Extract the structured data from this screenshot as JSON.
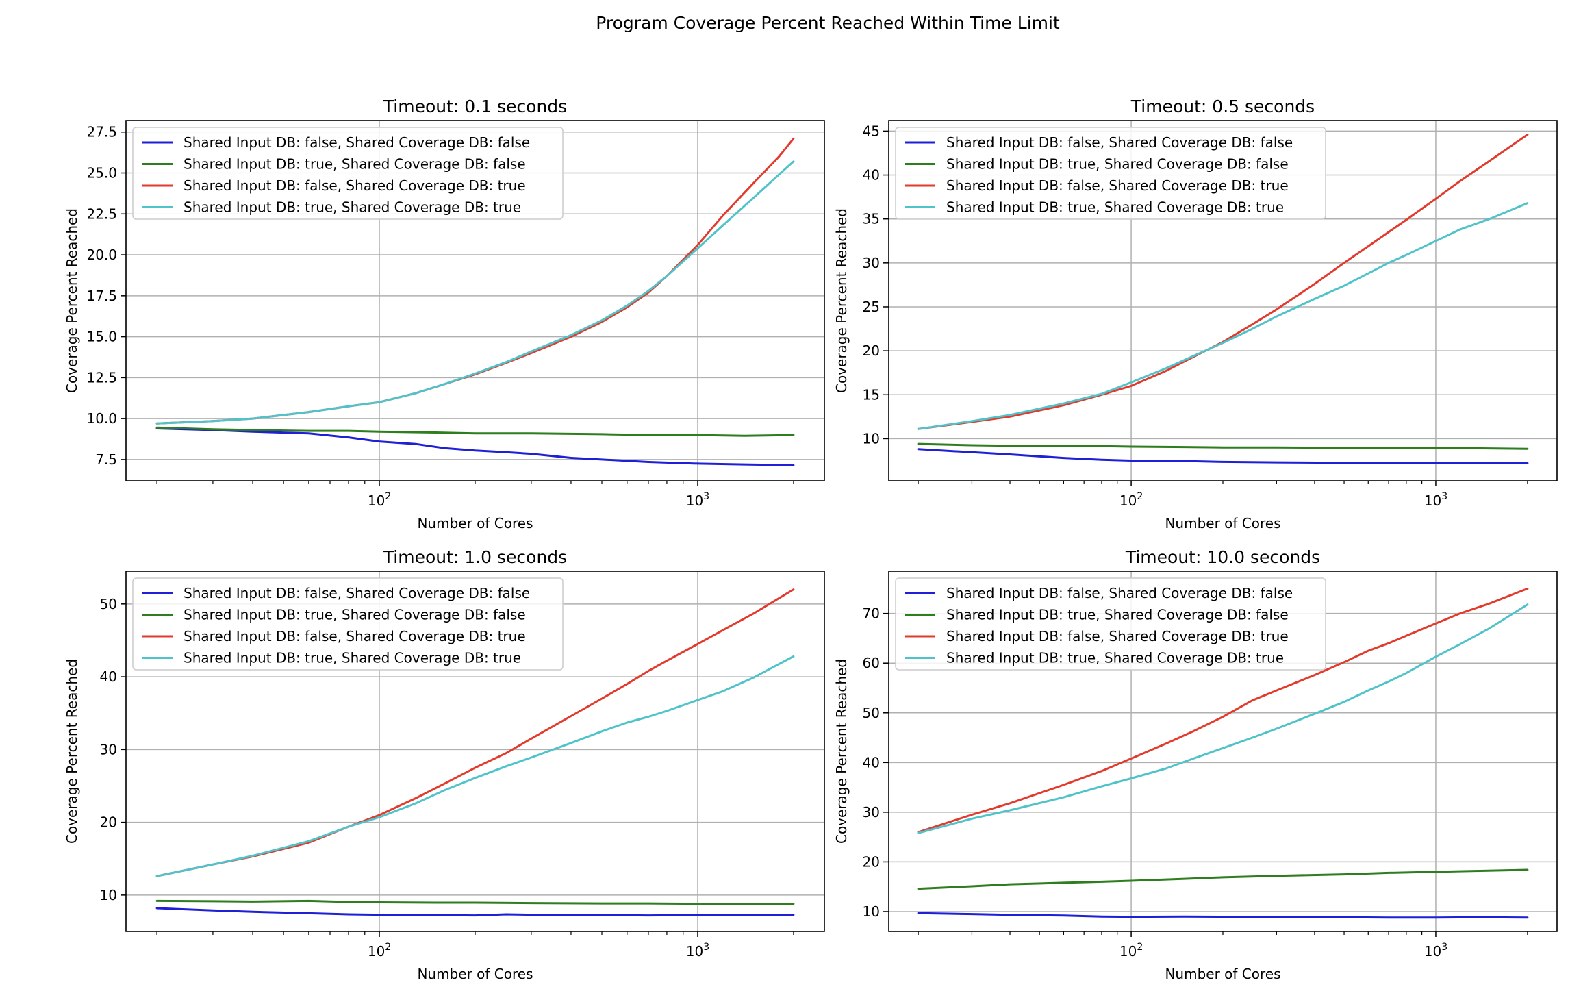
{
  "figure": {
    "suptitle": "Program Coverage Percent Reached Within Time Limit",
    "colors": {
      "blue": "#1f1fd6",
      "green": "#2e7d1f",
      "red": "#e23b2e",
      "cyan": "#4fc3c9"
    }
  },
  "chart_data": [
    {
      "type": "line",
      "title": "Timeout: 0.1 seconds",
      "xlabel": "Number of Cores",
      "ylabel": "Coverage Percent Reached",
      "xscale": "log",
      "xlim": [
        16,
        2500
      ],
      "ylim": [
        6.2,
        28.2
      ],
      "yticks": [
        7.5,
        10.0,
        12.5,
        15.0,
        17.5,
        20.0,
        22.5,
        25.0,
        27.5
      ],
      "ytick_labels": [
        "7.5",
        "10.0",
        "12.5",
        "15.0",
        "17.5",
        "20.0",
        "22.5",
        "25.0",
        "27.5"
      ],
      "xticks": [
        100,
        1000
      ],
      "xtick_labels": [
        "2",
        "3"
      ],
      "grid": true,
      "legend": "upper-left",
      "series": [
        {
          "name": "Shared Input DB:  false, Shared Coverage DB:  false",
          "color": "#1f1fd6",
          "x": [
            20,
            30,
            40,
            60,
            80,
            100,
            130,
            160,
            200,
            250,
            300,
            400,
            500,
            700,
            1000,
            1400,
            2000
          ],
          "y": [
            9.4,
            9.3,
            9.2,
            9.1,
            8.85,
            8.6,
            8.45,
            8.2,
            8.05,
            7.95,
            7.85,
            7.6,
            7.5,
            7.35,
            7.25,
            7.2,
            7.15
          ]
        },
        {
          "name": "Shared Input DB:  true, Shared Coverage DB:  false",
          "color": "#2e7d1f",
          "x": [
            20,
            30,
            40,
            60,
            80,
            100,
            150,
            200,
            300,
            500,
            700,
            1000,
            1400,
            2000
          ],
          "y": [
            9.45,
            9.35,
            9.3,
            9.25,
            9.25,
            9.2,
            9.15,
            9.1,
            9.1,
            9.05,
            9.0,
            9.0,
            8.95,
            9.0
          ]
        },
        {
          "name": "Shared Input DB:  false, Shared Coverage DB:  true",
          "color": "#e23b2e",
          "x": [
            20,
            30,
            40,
            60,
            80,
            100,
            130,
            160,
            200,
            250,
            300,
            400,
            500,
            600,
            700,
            800,
            1000,
            1200,
            1500,
            1800,
            2000
          ],
          "y": [
            9.7,
            9.85,
            10.0,
            10.4,
            10.75,
            11.0,
            11.55,
            12.1,
            12.7,
            13.4,
            14.0,
            15.0,
            15.9,
            16.8,
            17.7,
            18.7,
            20.6,
            22.4,
            24.4,
            26.0,
            27.1
          ]
        },
        {
          "name": "Shared Input DB:  true, Shared Coverage DB:  true",
          "color": "#4fc3c9",
          "x": [
            20,
            30,
            40,
            60,
            80,
            100,
            130,
            160,
            200,
            250,
            300,
            400,
            500,
            600,
            700,
            800,
            1000,
            1200,
            1500,
            1800,
            2000
          ],
          "y": [
            9.7,
            9.85,
            10.0,
            10.4,
            10.75,
            11.0,
            11.55,
            12.1,
            12.75,
            13.45,
            14.1,
            15.1,
            16.0,
            16.9,
            17.8,
            18.7,
            20.4,
            21.8,
            23.5,
            24.9,
            25.7
          ]
        }
      ]
    },
    {
      "type": "line",
      "title": "Timeout: 0.5 seconds",
      "xlabel": "Number of Cores",
      "ylabel": "Coverage Percent Reached",
      "xscale": "log",
      "xlim": [
        16,
        2500
      ],
      "ylim": [
        5.2,
        46.2
      ],
      "yticks": [
        10,
        15,
        20,
        25,
        30,
        35,
        40,
        45
      ],
      "ytick_labels": [
        "10",
        "15",
        "20",
        "25",
        "30",
        "35",
        "40",
        "45"
      ],
      "xticks": [
        100,
        1000
      ],
      "xtick_labels": [
        "2",
        "3"
      ],
      "grid": true,
      "legend": "upper-left",
      "series": [
        {
          "name": "Shared Input DB:  false, Shared Coverage DB:  false",
          "color": "#1f1fd6",
          "x": [
            20,
            30,
            40,
            60,
            80,
            100,
            150,
            200,
            300,
            500,
            700,
            1000,
            1400,
            2000
          ],
          "y": [
            8.8,
            8.45,
            8.2,
            7.8,
            7.6,
            7.5,
            7.45,
            7.35,
            7.3,
            7.25,
            7.2,
            7.2,
            7.25,
            7.2
          ]
        },
        {
          "name": "Shared Input DB:  true, Shared Coverage DB:  false",
          "color": "#2e7d1f",
          "x": [
            20,
            30,
            40,
            60,
            80,
            100,
            150,
            200,
            300,
            500,
            700,
            1000,
            1400,
            2000
          ],
          "y": [
            9.4,
            9.25,
            9.2,
            9.2,
            9.15,
            9.1,
            9.05,
            9.0,
            9.0,
            8.95,
            8.95,
            8.95,
            8.9,
            8.85
          ]
        },
        {
          "name": "Shared Input DB:  false, Shared Coverage DB:  true",
          "color": "#e23b2e",
          "x": [
            20,
            30,
            40,
            60,
            80,
            100,
            130,
            160,
            200,
            250,
            300,
            400,
            500,
            600,
            700,
            800,
            1000,
            1200,
            1500,
            2000
          ],
          "y": [
            11.1,
            11.9,
            12.5,
            13.8,
            15.0,
            16.0,
            17.7,
            19.3,
            21.0,
            23.0,
            24.7,
            27.6,
            30.0,
            31.9,
            33.5,
            34.9,
            37.3,
            39.3,
            41.6,
            44.6
          ]
        },
        {
          "name": "Shared Input DB:  true, Shared Coverage DB:  true",
          "color": "#4fc3c9",
          "x": [
            20,
            30,
            40,
            60,
            80,
            100,
            130,
            160,
            200,
            250,
            300,
            400,
            500,
            600,
            700,
            800,
            1000,
            1200,
            1500,
            2000
          ],
          "y": [
            11.1,
            12.0,
            12.7,
            14.0,
            15.1,
            16.4,
            18.0,
            19.4,
            20.9,
            22.5,
            23.9,
            25.9,
            27.4,
            28.8,
            30.0,
            30.9,
            32.5,
            33.8,
            35.0,
            36.8
          ]
        }
      ]
    },
    {
      "type": "line",
      "title": "Timeout: 1.0 seconds",
      "xlabel": "Number of Cores",
      "ylabel": "Coverage Percent Reached",
      "xscale": "log",
      "xlim": [
        16,
        2500
      ],
      "ylim": [
        5.0,
        54.5
      ],
      "yticks": [
        10,
        20,
        30,
        40,
        50
      ],
      "ytick_labels": [
        "10",
        "20",
        "30",
        "40",
        "50"
      ],
      "xticks": [
        100,
        1000
      ],
      "xtick_labels": [
        "2",
        "3"
      ],
      "grid": true,
      "legend": "upper-left",
      "series": [
        {
          "name": "Shared Input DB:  false, Shared Coverage DB:  false",
          "color": "#1f1fd6",
          "x": [
            20,
            30,
            40,
            60,
            80,
            100,
            150,
            200,
            250,
            300,
            500,
            700,
            1000,
            1400,
            2000
          ],
          "y": [
            8.2,
            7.9,
            7.7,
            7.5,
            7.35,
            7.3,
            7.25,
            7.2,
            7.35,
            7.3,
            7.25,
            7.2,
            7.25,
            7.25,
            7.3
          ]
        },
        {
          "name": "Shared Input DB:  true, Shared Coverage DB:  false",
          "color": "#2e7d1f",
          "x": [
            20,
            30,
            40,
            60,
            80,
            100,
            150,
            200,
            300,
            500,
            700,
            1000,
            1400,
            2000
          ],
          "y": [
            9.2,
            9.15,
            9.1,
            9.2,
            9.05,
            9.0,
            8.95,
            8.95,
            8.9,
            8.85,
            8.85,
            8.8,
            8.8,
            8.8
          ]
        },
        {
          "name": "Shared Input DB:  false, Shared Coverage DB:  true",
          "color": "#e23b2e",
          "x": [
            20,
            30,
            40,
            60,
            80,
            100,
            130,
            160,
            200,
            250,
            300,
            400,
            500,
            600,
            700,
            800,
            1000,
            1200,
            1500,
            2000
          ],
          "y": [
            12.6,
            14.2,
            15.3,
            17.2,
            19.4,
            21.0,
            23.3,
            25.3,
            27.5,
            29.5,
            31.5,
            34.6,
            37.0,
            39.0,
            40.8,
            42.2,
            44.5,
            46.4,
            48.7,
            52.0
          ]
        },
        {
          "name": "Shared Input DB:  true, Shared Coverage DB:  true",
          "color": "#4fc3c9",
          "x": [
            20,
            30,
            40,
            60,
            80,
            100,
            130,
            160,
            200,
            250,
            300,
            400,
            500,
            600,
            700,
            800,
            1000,
            1200,
            1500,
            2000
          ],
          "y": [
            12.6,
            14.2,
            15.4,
            17.4,
            19.4,
            20.7,
            22.6,
            24.4,
            26.1,
            27.7,
            28.9,
            30.9,
            32.5,
            33.7,
            34.5,
            35.3,
            36.8,
            38.0,
            39.9,
            42.8
          ]
        }
      ]
    },
    {
      "type": "line",
      "title": "Timeout: 10.0 seconds",
      "xlabel": "Number of Cores",
      "ylabel": "Coverage Percent Reached",
      "xscale": "log",
      "xlim": [
        16,
        2500
      ],
      "ylim": [
        6.0,
        78.5
      ],
      "yticks": [
        10,
        20,
        30,
        40,
        50,
        60,
        70
      ],
      "ytick_labels": [
        "10",
        "20",
        "30",
        "40",
        "50",
        "60",
        "70"
      ],
      "xticks": [
        100,
        1000
      ],
      "xtick_labels": [
        "2",
        "3"
      ],
      "grid": true,
      "legend": "upper-left",
      "series": [
        {
          "name": "Shared Input DB:  false, Shared Coverage DB:  false",
          "color": "#1f1fd6",
          "x": [
            20,
            30,
            40,
            60,
            80,
            100,
            150,
            200,
            300,
            500,
            700,
            1000,
            1400,
            2000
          ],
          "y": [
            9.7,
            9.5,
            9.35,
            9.2,
            9.0,
            8.95,
            9.0,
            8.95,
            8.9,
            8.85,
            8.8,
            8.8,
            8.85,
            8.8
          ]
        },
        {
          "name": "Shared Input DB:  true, Shared Coverage DB:  false",
          "color": "#2e7d1f",
          "x": [
            20,
            30,
            40,
            60,
            80,
            100,
            150,
            200,
            300,
            500,
            700,
            1000,
            1400,
            2000
          ],
          "y": [
            14.6,
            15.1,
            15.5,
            15.8,
            16.0,
            16.2,
            16.6,
            16.9,
            17.2,
            17.5,
            17.8,
            18.0,
            18.2,
            18.4
          ]
        },
        {
          "name": "Shared Input DB:  false, Shared Coverage DB:  true",
          "color": "#e23b2e",
          "x": [
            20,
            30,
            40,
            60,
            80,
            100,
            130,
            160,
            200,
            250,
            300,
            400,
            500,
            600,
            700,
            800,
            1000,
            1200,
            1500,
            2000
          ],
          "y": [
            26.0,
            29.5,
            31.8,
            35.5,
            38.3,
            40.8,
            43.8,
            46.3,
            49.2,
            52.5,
            54.5,
            57.6,
            60.2,
            62.5,
            64.0,
            65.5,
            68.0,
            70.0,
            72.0,
            75.0
          ]
        },
        {
          "name": "Shared Input DB:  true, Shared Coverage DB:  true",
          "color": "#4fc3c9",
          "x": [
            20,
            30,
            40,
            60,
            80,
            100,
            130,
            160,
            200,
            250,
            300,
            400,
            500,
            600,
            700,
            800,
            1000,
            1200,
            1500,
            2000
          ],
          "y": [
            25.8,
            28.7,
            30.4,
            33.0,
            35.2,
            36.8,
            38.8,
            40.8,
            42.9,
            45.0,
            46.8,
            49.8,
            52.2,
            54.5,
            56.3,
            58.0,
            61.3,
            63.8,
            67.0,
            71.8
          ]
        }
      ]
    }
  ]
}
